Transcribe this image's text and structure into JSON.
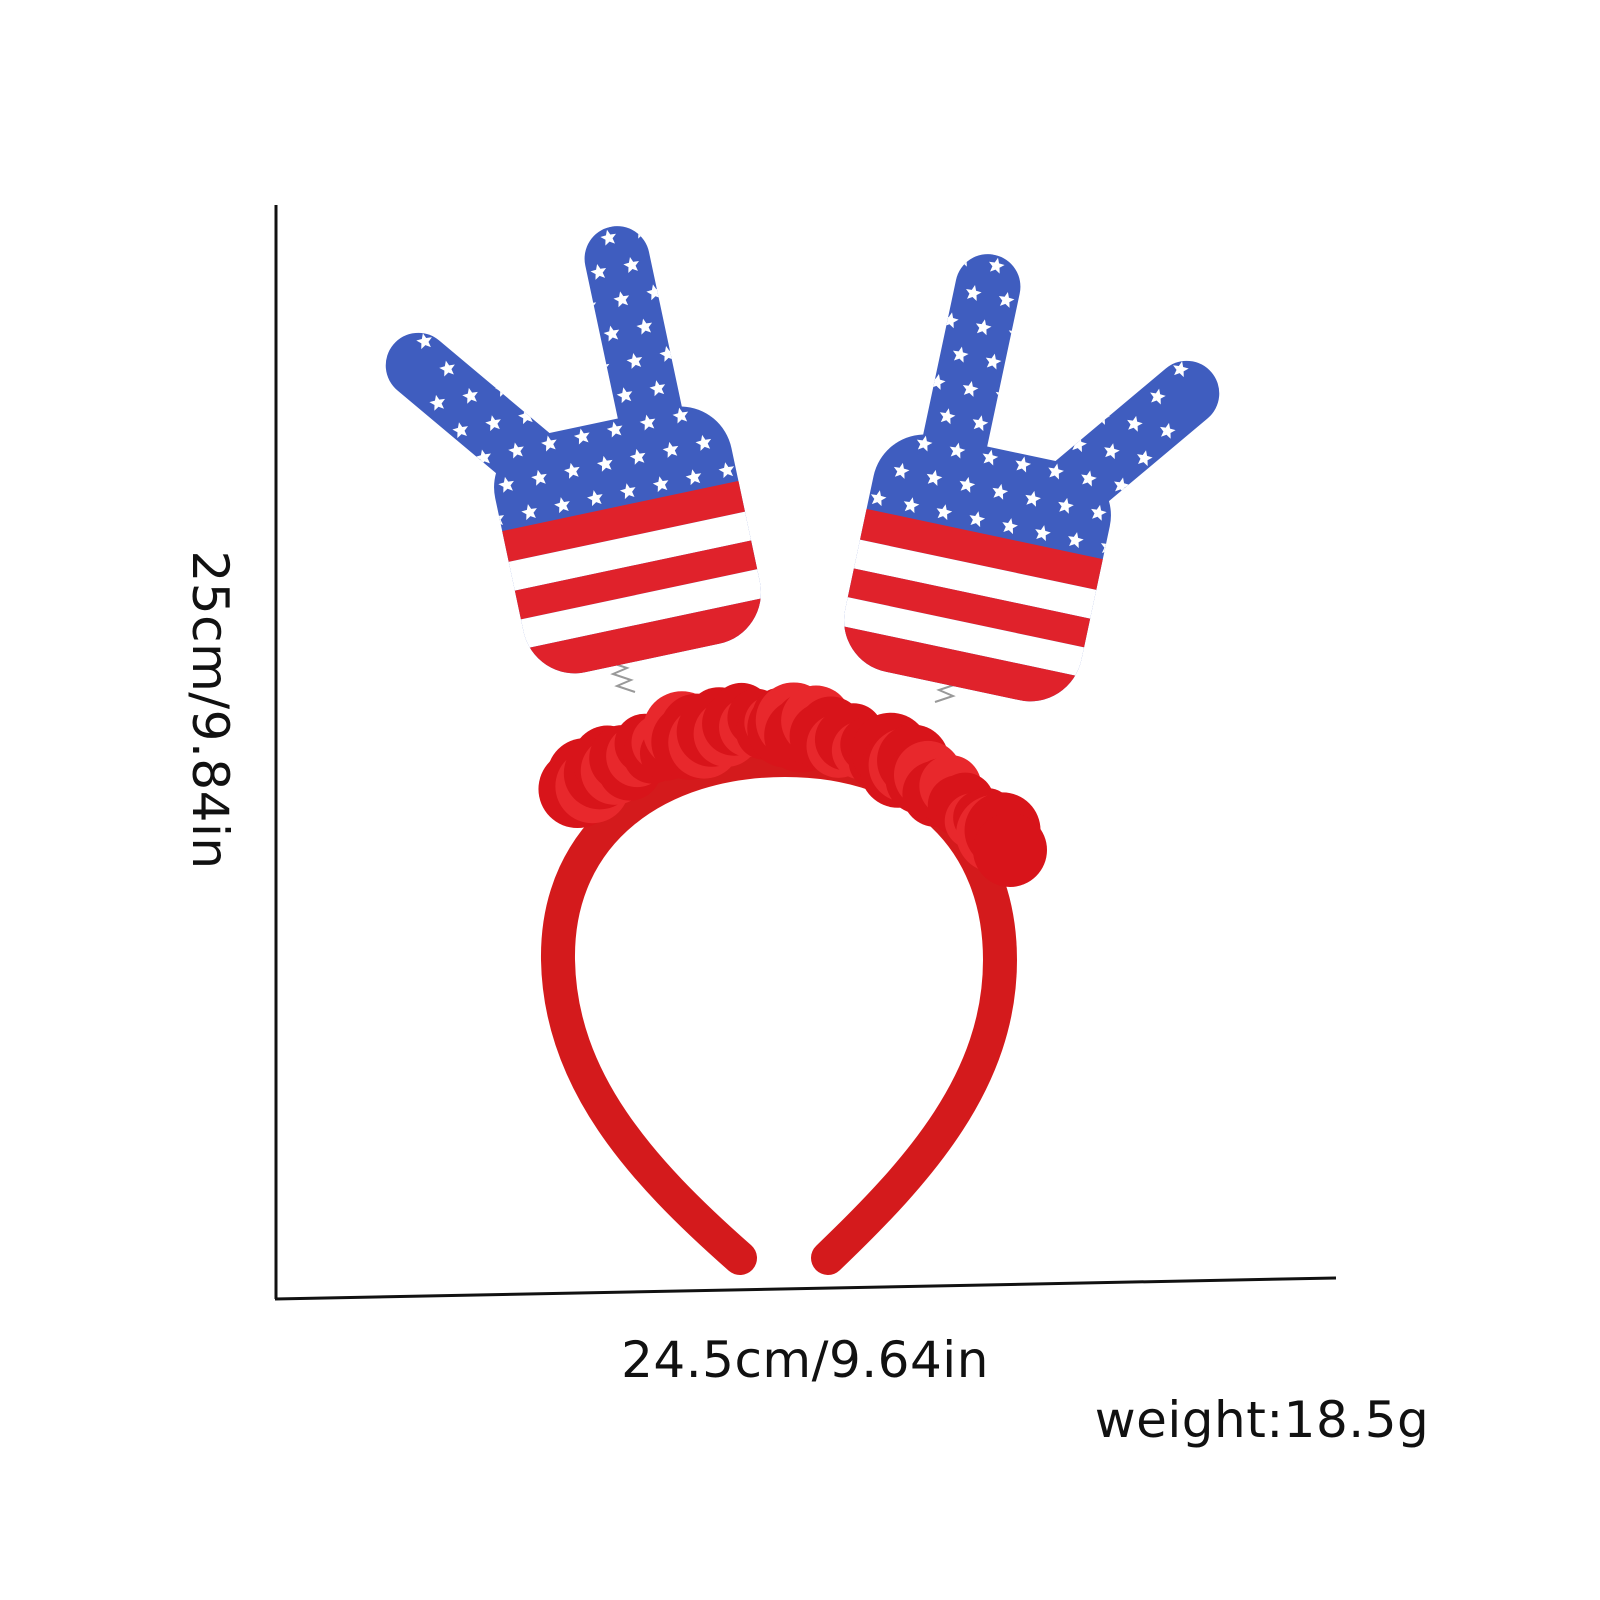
{
  "dimensions": {
    "height": "25cm/9.84in",
    "width": "24.5cm/9.64in",
    "weight": "weight:18.5g"
  },
  "product": {
    "colors": {
      "band": "#d41a1c",
      "blue": "#3f5dbf",
      "stripe_red": "#e0222b",
      "white": "#ffffff"
    }
  }
}
